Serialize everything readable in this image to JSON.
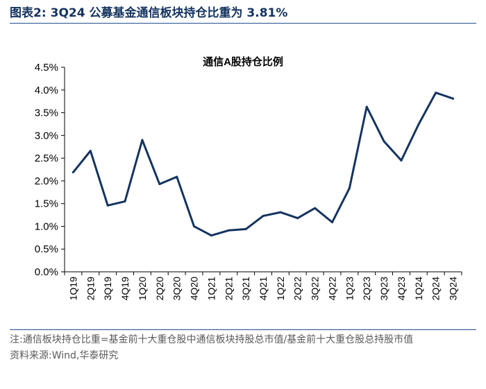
{
  "figure": {
    "label": "图表2:",
    "headline": "3Q24 公募基金通信板块持仓比重为 3.81%"
  },
  "notes": {
    "note": "注:通信板块持仓比重=基金前十大重仓股中通信板块持股总市值/基金前十大重仓股总持股市值",
    "source": "资料来源:Wind,华泰研究"
  },
  "chart_data": {
    "type": "line",
    "title": "通信A股持仓比例",
    "xlabel": "",
    "ylabel": "",
    "ylim": [
      0,
      4.5
    ],
    "yticks": [
      "0.0%",
      "0.5%",
      "1.0%",
      "1.5%",
      "2.0%",
      "2.5%",
      "3.0%",
      "3.5%",
      "4.0%",
      "4.5%"
    ],
    "ytick_values": [
      0,
      0.5,
      1.0,
      1.5,
      2.0,
      2.5,
      3.0,
      3.5,
      4.0,
      4.5
    ],
    "grid": false,
    "categories": [
      "1Q19",
      "2Q19",
      "3Q19",
      "4Q19",
      "1Q20",
      "2Q20",
      "3Q20",
      "4Q20",
      "1Q21",
      "2Q21",
      "3Q21",
      "4Q21",
      "1Q22",
      "2Q22",
      "3Q22",
      "4Q22",
      "1Q23",
      "2Q23",
      "3Q23",
      "4Q23",
      "1Q24",
      "2Q24",
      "3Q24"
    ],
    "series": [
      {
        "name": "通信A股持仓比例",
        "color": "#14335f",
        "values": [
          2.19,
          2.66,
          1.46,
          1.55,
          2.9,
          1.93,
          2.09,
          1.0,
          0.8,
          0.91,
          0.94,
          1.23,
          1.31,
          1.18,
          1.4,
          1.09,
          1.84,
          3.63,
          2.87,
          2.45,
          3.24,
          3.94,
          3.81
        ]
      }
    ]
  }
}
